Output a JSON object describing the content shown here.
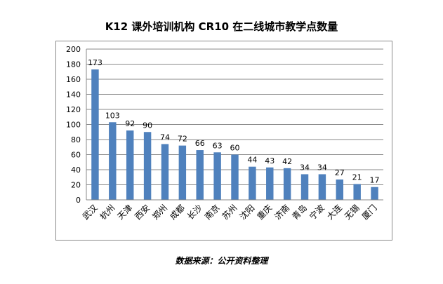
{
  "title": "K12 课外培训机构 CR10 在二线城市教学点数量",
  "source_note": "数据来源：公开资料整理",
  "colors": {
    "bar": "#4f81bd",
    "grid": "#8a8a8a",
    "frame": "#8a8a8a",
    "text": "#000000"
  },
  "chart_data": {
    "type": "bar",
    "title": "K12 课外培训机构 CR10 在二线城市教学点数量",
    "xlabel": "",
    "ylabel": "",
    "ylim": [
      0,
      200
    ],
    "yticks": [
      0,
      20,
      40,
      60,
      80,
      100,
      120,
      140,
      160,
      180,
      200
    ],
    "grid": true,
    "legend": "none",
    "data_labels": true,
    "categories": [
      "武汉",
      "杭州",
      "天津",
      "西安",
      "郑州",
      "成都",
      "长沙",
      "南京",
      "苏州",
      "沈阳",
      "重庆",
      "济南",
      "青岛",
      "宁波",
      "大连",
      "无锡",
      "厦门"
    ],
    "values": [
      173,
      103,
      92,
      90,
      74,
      72,
      66,
      63,
      60,
      44,
      43,
      42,
      34,
      34,
      27,
      21,
      17
    ]
  }
}
